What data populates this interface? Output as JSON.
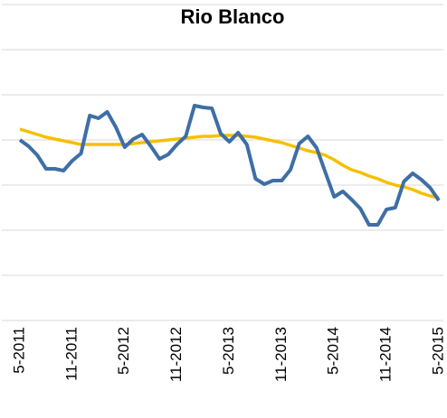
{
  "chart_data": {
    "type": "line",
    "title": "Rio Blanco",
    "categories": [
      "5-2011",
      null,
      null,
      null,
      null,
      null,
      "11-2011",
      null,
      null,
      null,
      null,
      null,
      "5-2012",
      null,
      null,
      null,
      null,
      null,
      "11-2012",
      null,
      null,
      null,
      null,
      null,
      "5-2013",
      null,
      null,
      null,
      null,
      null,
      "11-2013",
      null,
      null,
      null,
      null,
      null,
      "5-2014",
      null,
      null,
      null,
      null,
      null,
      "11-2014",
      null,
      null,
      null,
      null,
      null,
      "5-2015"
    ],
    "series": [
      {
        "color": "#f5c000",
        "values": [
          4.24,
          4.18,
          4.12,
          4.06,
          4.02,
          3.98,
          3.94,
          3.9,
          3.9,
          3.9,
          3.9,
          3.9,
          3.9,
          3.92,
          3.94,
          3.96,
          3.98,
          4.0,
          4.02,
          4.04,
          4.06,
          4.08,
          4.08,
          4.1,
          4.1,
          4.1,
          4.08,
          4.06,
          4.02,
          3.98,
          3.94,
          3.88,
          3.82,
          3.76,
          3.72,
          3.66,
          3.56,
          3.44,
          3.34,
          3.28,
          3.2,
          3.14,
          3.06,
          3.0,
          2.96,
          2.9,
          2.82,
          2.76,
          2.72
        ]
      },
      {
        "color": "#3e6ea6",
        "values": [
          4.0,
          3.86,
          3.66,
          3.36,
          3.36,
          3.32,
          3.54,
          3.7,
          4.54,
          4.48,
          4.62,
          4.28,
          3.84,
          4.02,
          4.12,
          3.86,
          3.58,
          3.68,
          3.9,
          4.08,
          4.76,
          4.72,
          4.7,
          4.14,
          3.96,
          4.16,
          3.9,
          3.14,
          3.02,
          3.1,
          3.1,
          3.34,
          3.92,
          4.08,
          3.82,
          3.28,
          2.74,
          2.86,
          2.68,
          2.48,
          2.12,
          2.12,
          2.46,
          2.5,
          3.08,
          3.26,
          3.12,
          2.94,
          2.66
        ]
      }
    ],
    "ylim": [
      0,
      7
    ],
    "yticks": [
      0,
      1,
      2,
      3,
      4,
      5,
      6,
      7
    ],
    "grid": true
  }
}
